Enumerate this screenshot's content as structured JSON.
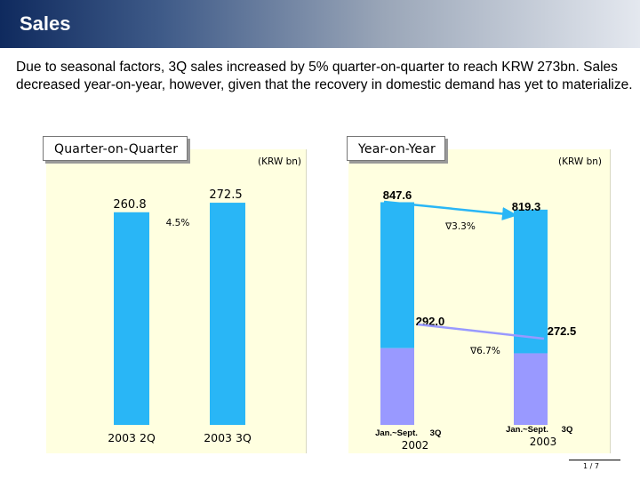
{
  "title": "Sales",
  "intro": "Due to seasonal factors, 3Q sales increased by 5% quarter-on-quarter to reach KRW 273bn. Sales decreased year-on-year, however, given that the recovery in domestic demand has yet to materialize.",
  "page_number": "1 / 7",
  "colors": {
    "bar_blue": "#29b6f6",
    "bar_purple": "#9999ff",
    "arrow": "#29b6f6",
    "panel": "#ffffe0"
  },
  "chart_data": [
    {
      "type": "bar",
      "title": "Quarter-on-Quarter",
      "unit": "(KRW bn)",
      "categories": [
        "2003 2Q",
        "2003 3Q"
      ],
      "values": [
        260.8,
        272.5
      ],
      "value_labels": [
        "260.8",
        "272.5"
      ],
      "change_label": "4.5%",
      "ylim": [
        0,
        290
      ]
    },
    {
      "type": "bar",
      "title": "Year-on-Year",
      "unit": "(KRW bn)",
      "categories": [
        {
          "period": "Jan.~Sept.",
          "quarter": "3Q",
          "year": "2002"
        },
        {
          "period": "Jan.~Sept.",
          "quarter": "3Q",
          "year": "2003"
        }
      ],
      "series": [
        {
          "name": "Jan.~Sept.",
          "values": [
            847.6,
            819.3
          ],
          "labels": [
            "847.6",
            "819.3"
          ],
          "change_label": "∇3.3%"
        },
        {
          "name": "3Q",
          "values": [
            292.0,
            272.5
          ],
          "labels": [
            "292.0",
            "272.5"
          ],
          "change_label": "∇6.7%"
        }
      ],
      "ylim": [
        0,
        900
      ]
    }
  ]
}
